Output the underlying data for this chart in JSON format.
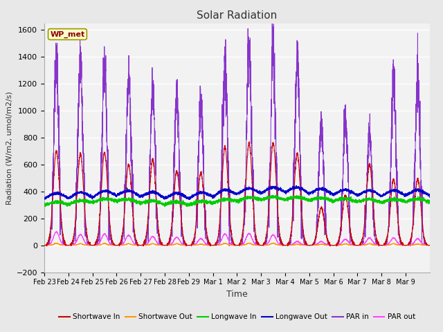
{
  "title": "Solar Radiation",
  "xlabel": "Time",
  "ylabel": "Radiation (W/m2, umol/m2/s)",
  "ylim": [
    -200,
    1650
  ],
  "yticks": [
    -200,
    0,
    200,
    400,
    600,
    800,
    1000,
    1200,
    1400,
    1600
  ],
  "xtick_labels": [
    "Feb 23",
    "Feb 24",
    "Feb 25",
    "Feb 26",
    "Feb 27",
    "Feb 28",
    "Feb 29",
    "Mar 1",
    "Mar 2",
    "Mar 3",
    "Mar 4",
    "Mar 5",
    "Mar 6",
    "Mar 7",
    "Mar 8",
    "Mar 9"
  ],
  "station_label": "WP_met",
  "colors": {
    "shortwave_in": "#cc0000",
    "shortwave_out": "#ff9900",
    "longwave_in": "#00cc00",
    "longwave_out": "#0000cc",
    "par_in": "#8833cc",
    "par_out": "#ff44ff"
  },
  "legend_labels": [
    "Shortwave In",
    "Shortwave Out",
    "Longwave In",
    "Longwave Out",
    "PAR in",
    "PAR out"
  ],
  "background_color": "#e8e8e8",
  "plot_background": "#f2f2f2",
  "num_days": 16,
  "points_per_day": 288,
  "par_in_peaks": [
    1350,
    1330,
    1360,
    1190,
    1145,
    1100,
    1090,
    1325,
    1430,
    1450,
    1355,
    920,
    950,
    830,
    1220,
    1210
  ],
  "sw_in_peaks": [
    700,
    680,
    690,
    600,
    640,
    550,
    540,
    730,
    760,
    760,
    680,
    280,
    370,
    600,
    490,
    490
  ],
  "par_out_peaks": [
    100,
    80,
    85,
    75,
    65,
    60,
    50,
    85,
    88,
    78,
    28,
    28,
    45,
    55,
    55,
    48
  ],
  "sw_out_peaks": [
    15,
    12,
    14,
    12,
    12,
    12,
    9,
    15,
    16,
    16,
    8,
    8,
    11,
    12,
    12,
    10
  ],
  "lw_in_base": 310,
  "lw_out_base": 355
}
